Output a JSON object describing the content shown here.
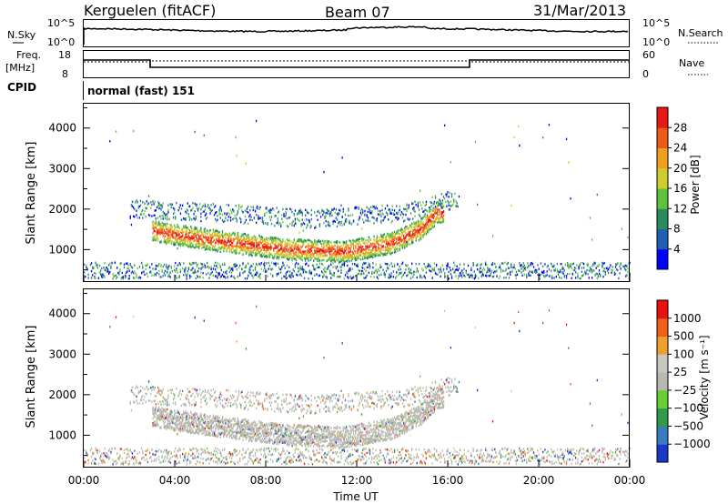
{
  "header": {
    "station": "Kerguelen (fitACF)",
    "beam": "Beam 07",
    "date": "31/Mar/2013"
  },
  "noise_panel": {
    "left_label": "N.Sky",
    "right_label": "N.Search",
    "left_ticks": [
      "10^5",
      "10^0"
    ],
    "right_ticks": [
      "10^5",
      "10^0"
    ]
  },
  "freq_panel": {
    "left_label_1": "Freq.",
    "left_label_2": "[MHz]",
    "right_label": "Nave",
    "left_ticks": [
      "18",
      "8"
    ],
    "right_ticks": [
      "60",
      "0"
    ]
  },
  "cpid": {
    "label": "CPID",
    "value": "normal (fast) 151"
  },
  "chart_data": [
    {
      "type": "heatmap",
      "name": "power",
      "ylabel": "Slant Range [km]",
      "ylim": [
        200,
        4600
      ],
      "yticks": [
        "1000",
        "2000",
        "3000",
        "4000"
      ],
      "xlim_hours": [
        0,
        24
      ],
      "colorbar": {
        "label": "Power [dB]",
        "ticks": [
          "4",
          "8",
          "12",
          "16",
          "20",
          "24",
          "28"
        ],
        "colors": [
          "#0000ff",
          "#1f5fb0",
          "#2b8a60",
          "#5ec23c",
          "#cdcd30",
          "#f0a020",
          "#f05a18",
          "#e81818"
        ]
      },
      "features": [
        {
          "feature": "main echo band",
          "start_hour": 3.0,
          "end_hour": 15.8,
          "range_km": [
            [
              3.0,
              1450
            ],
            [
              6.0,
              1200
            ],
            [
              9.0,
              1000
            ],
            [
              11.5,
              950
            ],
            [
              13.5,
              1150
            ],
            [
              14.8,
              1500
            ],
            [
              15.5,
              1900
            ]
          ]
        },
        {
          "feature": "upper diffuse band",
          "start_hour": 2.0,
          "end_hour": 16.5,
          "range_km": [
            [
              2.0,
              2000
            ],
            [
              6.0,
              1900
            ],
            [
              10.0,
              1750
            ],
            [
              14.0,
              1900
            ],
            [
              16.0,
              2200
            ]
          ]
        },
        {
          "feature": "ground clutter",
          "start_hour": 0.0,
          "end_hour": 24.0,
          "range_km": [
            [
              0.0,
              450
            ],
            [
              24.0,
              450
            ]
          ]
        }
      ]
    },
    {
      "type": "heatmap",
      "name": "velocity",
      "ylabel": "Slant Range [km]",
      "ylim": [
        200,
        4600
      ],
      "yticks": [
        "1000",
        "2000",
        "3000",
        "4000"
      ],
      "xlim_hours": [
        0,
        24
      ],
      "xlabel": "Time UT",
      "xticks": [
        "00:00",
        "04:00",
        "08:00",
        "12:00",
        "16:00",
        "20:00",
        "00:00"
      ],
      "colorbar": {
        "label": "Velocity [m s⁻¹]",
        "ticks": [
          "1000",
          "500",
          "100",
          "25",
          "−25",
          "−100",
          "−500",
          "−1000"
        ],
        "colors": [
          "#1838c8",
          "#3a7ac0",
          "#2e9a4a",
          "#66cc33",
          "#b8b8b0",
          "#c8c8c0",
          "#f0a030",
          "#f06018",
          "#e81010"
        ]
      }
    }
  ]
}
